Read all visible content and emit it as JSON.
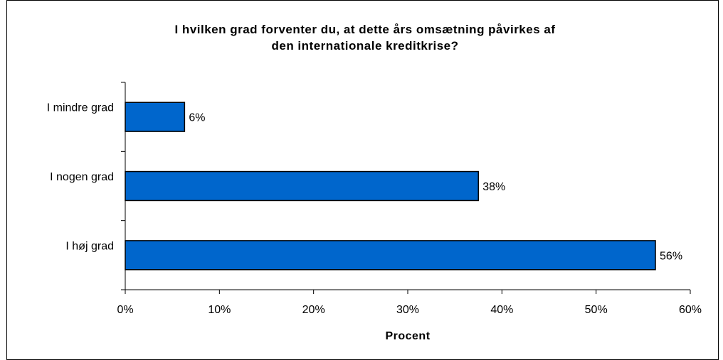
{
  "chart_data": {
    "type": "bar",
    "orientation": "horizontal",
    "title_lines": [
      "I hvilken grad forventer du, at dette års omsætning påvirkes af",
      "den internationale kreditkrise?"
    ],
    "categories": [
      "I mindre grad",
      "I nogen grad",
      "I høj grad"
    ],
    "values": [
      6.3,
      37.5,
      56.3
    ],
    "data_labels": [
      "6%",
      "38%",
      "56%"
    ],
    "xlabel": "Procent",
    "ylabel": "",
    "xlim": [
      0,
      60
    ],
    "x_ticks": [
      "0%",
      "10%",
      "20%",
      "30%",
      "40%",
      "50%",
      "60%"
    ],
    "grid": false,
    "legend": "none",
    "bar_color": "#0066cc",
    "bar_outline": "#000000"
  }
}
